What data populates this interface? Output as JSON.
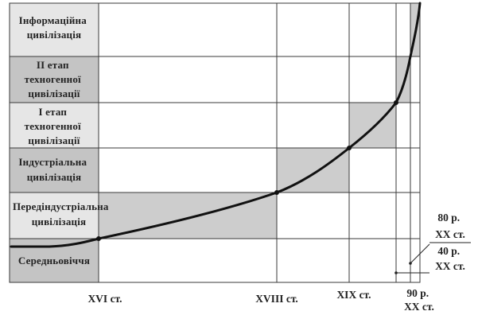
{
  "stages": [
    {
      "label_lines": [
        "Інформаційна",
        "цивілізація"
      ]
    },
    {
      "label_lines": [
        "II етап",
        "техногенної",
        "цивілізації"
      ]
    },
    {
      "label_lines": [
        "І етап",
        "техногенної",
        "цивілізації"
      ]
    },
    {
      "label_lines": [
        "Індустріальна",
        "цивілізація"
      ]
    },
    {
      "label_lines": [
        "Передіндустріальна",
        "цивілізація"
      ]
    },
    {
      "label_lines": [
        "Середньовіччя"
      ]
    }
  ],
  "x_axis_labels": {
    "xvi": "XVI ст.",
    "xviii": "XVIII ст.",
    "xix": "XIX ст.",
    "xx90": [
      "90 р.",
      "XX ст."
    ]
  },
  "annotations": {
    "xx80": [
      "80 р.",
      "XX ст."
    ],
    "xx40": [
      "40 р.",
      "XX ст."
    ]
  },
  "colors": {
    "stage_label_bg": "#e6e6e6",
    "stage_label_bg_dark": "#c4c4c4",
    "highlight_cell": "#cdcdcd",
    "grid_line": "#3a3a3a",
    "curve": "#111111"
  }
}
